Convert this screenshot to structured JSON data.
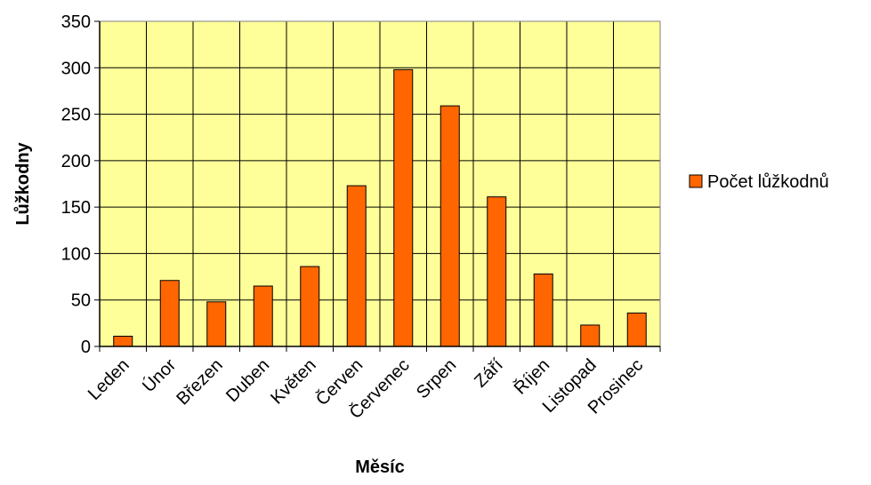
{
  "chart_data": {
    "type": "bar",
    "categories": [
      "Leden",
      "Únor",
      "Březen",
      "Duben",
      "Květen",
      "Červen",
      "Červenec",
      "Srpen",
      "Září",
      "Říjen",
      "Listopad",
      "Prosinec"
    ],
    "series": [
      {
        "name": "Počet lůžkodnů",
        "values": [
          11,
          71,
          48,
          65,
          86,
          173,
          298,
          259,
          161,
          78,
          23,
          36
        ],
        "color": "#FF6600"
      }
    ],
    "ylim": [
      0,
      350
    ],
    "yticks": [
      0,
      50,
      100,
      150,
      200,
      250,
      300,
      350
    ],
    "xlabel": "Měsíc",
    "ylabel": "Lůžkodny",
    "grid": true,
    "legend_position": "right",
    "plot_background": "#FFFF99"
  }
}
